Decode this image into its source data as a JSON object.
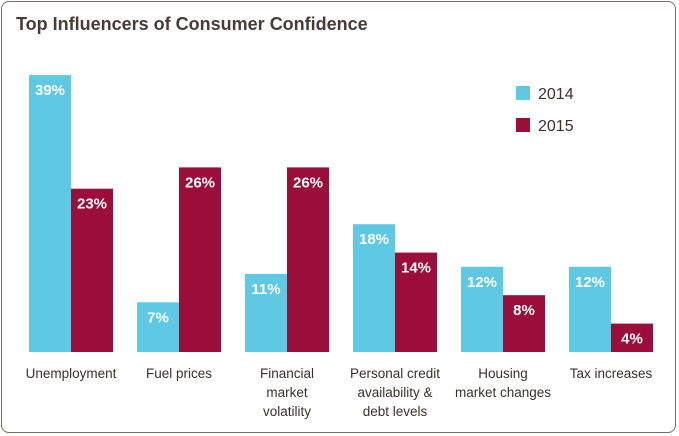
{
  "chart_data": {
    "type": "bar",
    "title": "Top Influencers of Consumer Confidence",
    "xlabel": "",
    "ylabel": "",
    "ylim": [
      0,
      40
    ],
    "grid": false,
    "legend_position": "top-right",
    "categories": [
      [
        "Unemployment"
      ],
      [
        "Fuel prices"
      ],
      [
        "Financial",
        "market",
        "volatility"
      ],
      [
        "Personal credit",
        "availability &",
        "debt levels"
      ],
      [
        "Housing",
        "market changes"
      ],
      [
        "Tax increases"
      ]
    ],
    "series": [
      {
        "name": "2014",
        "color": "#5fc8e2",
        "values": [
          39,
          7,
          11,
          18,
          12,
          12
        ],
        "labels": [
          "39%",
          "7%",
          "11%",
          "18%",
          "12%",
          "12%"
        ]
      },
      {
        "name": "2015",
        "color": "#9b0e3a",
        "values": [
          23,
          26,
          26,
          14,
          8,
          4
        ],
        "labels": [
          "23%",
          "26%",
          "26%",
          "14%",
          "8%",
          "4%"
        ]
      }
    ]
  }
}
